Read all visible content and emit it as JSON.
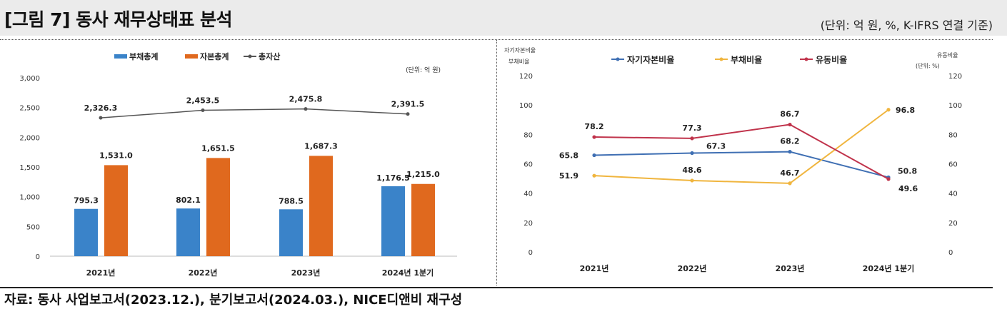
{
  "title": "[그림 7] 동사 재무상태표 분석",
  "unit_note": "(단위: 억 원, %, K-IFRS 연결 기준)",
  "source": "자료: 동사 사업보고서(2023.12.), 분기보고서(2024.03.), NICE디앤비 재구성",
  "chart_data": [
    {
      "type": "bar",
      "categories": [
        "2021년",
        "2022년",
        "2023년",
        "2024년 1분기"
      ],
      "unit_label": "(단위: 억 원)",
      "ylim": [
        0,
        3000
      ],
      "yticks": [
        "0",
        "500",
        "1,000",
        "1,500",
        "2,000",
        "2,500",
        "3,000"
      ],
      "series": [
        {
          "name": "부채총계",
          "kind": "bar",
          "color": "#3a83c9",
          "values": [
            795.3,
            802.1,
            788.5,
            1176.5
          ],
          "labels": [
            "795.3",
            "802.1",
            "788.5",
            "1,176.5"
          ]
        },
        {
          "name": "자본총계",
          "kind": "bar",
          "color": "#e0691e",
          "values": [
            1531.0,
            1651.5,
            1687.3,
            1215.0
          ],
          "labels": [
            "1,531.0",
            "1,651.5",
            "1,687.3",
            "1,215.0"
          ]
        },
        {
          "name": "총자산",
          "kind": "line",
          "color": "#555555",
          "values": [
            2326.3,
            2453.5,
            2475.8,
            2391.5
          ],
          "labels": [
            "2,326.3",
            "2,453.5",
            "2,475.8",
            "2,391.5"
          ]
        }
      ]
    },
    {
      "type": "line",
      "categories": [
        "2021년",
        "2022년",
        "2023년",
        "2024년 1분기"
      ],
      "left_axis_title": [
        "자기자본비율",
        "부채비율"
      ],
      "right_axis_title": "유동비율",
      "unit_label": "(단위: %)",
      "ylim": [
        0,
        120
      ],
      "yticks": [
        "0",
        "20",
        "40",
        "60",
        "80",
        "100",
        "120"
      ],
      "series": [
        {
          "name": "자기자본비율",
          "color": "#3f6fb3",
          "values": [
            65.8,
            67.3,
            68.2,
            50.8
          ],
          "labels": [
            "65.8",
            "67.3",
            "68.2",
            "50.8"
          ]
        },
        {
          "name": "부채비율",
          "color": "#f0b53e",
          "values": [
            51.9,
            48.6,
            46.7,
            96.8
          ],
          "labels": [
            "51.9",
            "48.6",
            "46.7",
            "96.8"
          ]
        },
        {
          "name": "유동비율",
          "color": "#c0334b",
          "values": [
            78.2,
            77.3,
            86.7,
            49.6
          ],
          "labels": [
            "78.2",
            "77.3",
            "86.7",
            "49.6"
          ]
        }
      ]
    }
  ]
}
